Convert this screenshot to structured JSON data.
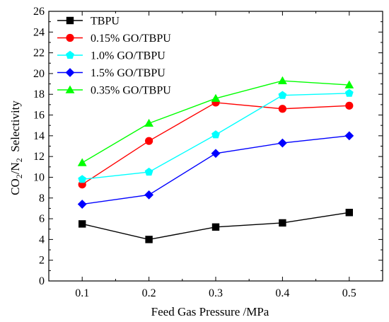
{
  "chart_data": {
    "type": "line",
    "xlabel": "Feed Gas Pressure /MPa",
    "ylabel": {
      "prefix": "CO",
      "sub1": "2",
      "mid": "/N",
      "sub2": "2",
      "suffix": "  Selectivity"
    },
    "x": [
      0.1,
      0.2,
      0.3,
      0.4,
      0.5
    ],
    "xlim": [
      0.05,
      0.55
    ],
    "ylim": [
      0,
      26
    ],
    "xticks": [
      "0.1",
      "0.2",
      "0.3",
      "0.4",
      "0.5"
    ],
    "yticks": [
      "0",
      "2",
      "4",
      "6",
      "8",
      "10",
      "12",
      "14",
      "16",
      "18",
      "20",
      "22",
      "24",
      "26"
    ],
    "grid": false,
    "legend_position": "top-left",
    "series": [
      {
        "name": "TBPU",
        "color": "#000000",
        "marker": "square",
        "values": [
          5.5,
          4.0,
          5.2,
          5.6,
          6.6
        ]
      },
      {
        "name": "0.15% GO/TBPU",
        "color": "#ff0000",
        "marker": "circle",
        "values": [
          9.3,
          13.5,
          17.2,
          16.6,
          16.9
        ]
      },
      {
        "name": "1.0% GO/TBPU",
        "color": "#00ffff",
        "marker": "pentagon",
        "values": [
          9.8,
          10.5,
          14.1,
          17.9,
          18.1
        ]
      },
      {
        "name": "1.5% GO/TBPU",
        "color": "#0000ff",
        "marker": "diamond",
        "values": [
          7.4,
          8.3,
          12.3,
          13.3,
          14.0
        ]
      },
      {
        "name": "0.35% GO/TBPU",
        "color": "#00ff00",
        "marker": "triangle",
        "values": [
          11.4,
          15.2,
          17.6,
          19.3,
          18.9
        ]
      }
    ]
  }
}
